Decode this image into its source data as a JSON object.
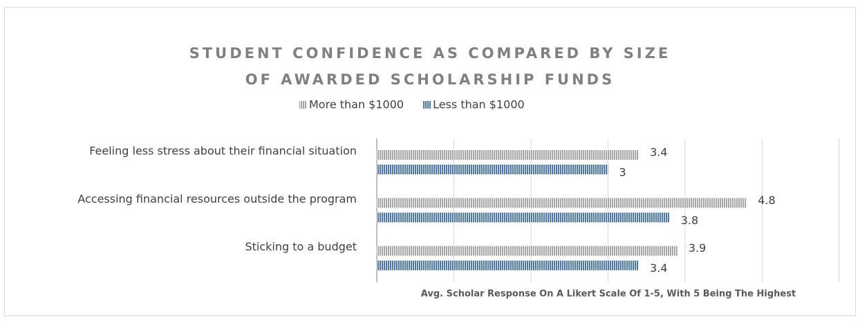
{
  "chart_data": {
    "type": "hbar",
    "title": "STUDENT CONFIDENCE AS COMPARED BY SIZE OF AWARDED SCHOLARSHIP FUNDS",
    "categories": [
      "Feeling less stress about their financial situation",
      "Accessing financial resources outside the program",
      "Sticking to a budget"
    ],
    "series": [
      {
        "name": "More than $1000",
        "color": "#a6a6a6",
        "values": [
          3.4,
          4.8,
          3.9
        ]
      },
      {
        "name": "Less than $1000",
        "color": "#4472c4",
        "values": [
          3,
          3.8,
          3.4
        ]
      }
    ],
    "xlabel": "Avg. Scholar Response On A Likert Scale Of 1-5, With 5 Being The Highest",
    "xlim": [
      0,
      6
    ],
    "xticks": [
      0,
      1,
      2,
      3,
      4,
      5,
      6
    ],
    "grid": true,
    "legend": "top"
  }
}
